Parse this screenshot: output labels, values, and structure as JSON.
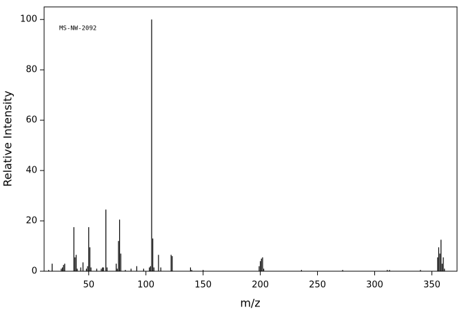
{
  "chart_data": {
    "type": "stem",
    "annotation": "MS-NW-2092",
    "x_label": "m/z",
    "y_label": "Relative Intensity",
    "x": [
      15,
      18,
      26,
      27,
      28,
      29,
      37,
      38,
      39,
      40,
      43,
      45,
      48,
      49,
      50,
      51,
      52,
      57,
      61,
      62,
      63,
      65,
      66,
      74,
      75,
      76,
      77,
      78,
      82,
      87,
      92,
      98,
      103,
      104,
      105,
      106,
      107,
      111,
      113,
      122,
      123,
      139,
      140,
      150,
      199,
      200,
      201,
      202,
      203,
      236,
      272,
      311,
      313,
      340,
      355,
      356,
      357,
      358,
      359,
      360,
      361
    ],
    "values": [
      0.5,
      3,
      1,
      1.5,
      2.5,
      3,
      17.5,
      5.5,
      6.5,
      1,
      1.5,
      3.5,
      1,
      2,
      17.5,
      9.5,
      1.5,
      1,
      1,
      1.5,
      1.5,
      24.5,
      1.5,
      3,
      1,
      12,
      20.5,
      7,
      0.5,
      1,
      2,
      1,
      1.5,
      2,
      100,
      13,
      1.5,
      6.5,
      1.5,
      6.5,
      6,
      1.5,
      0.5,
      0.5,
      2,
      4,
      5,
      5.5,
      1,
      0.5,
      0.5,
      0.5,
      0.5,
      0.5,
      5.5,
      9.5,
      7,
      12.5,
      3,
      5.5,
      1
    ],
    "color": "#000000",
    "xlim": [
      11,
      372
    ],
    "ylim": [
      0,
      105
    ],
    "xticks": [
      50,
      100,
      150,
      200,
      250,
      300,
      350
    ],
    "yticks": [
      0,
      20,
      40,
      60,
      80,
      100
    ]
  }
}
